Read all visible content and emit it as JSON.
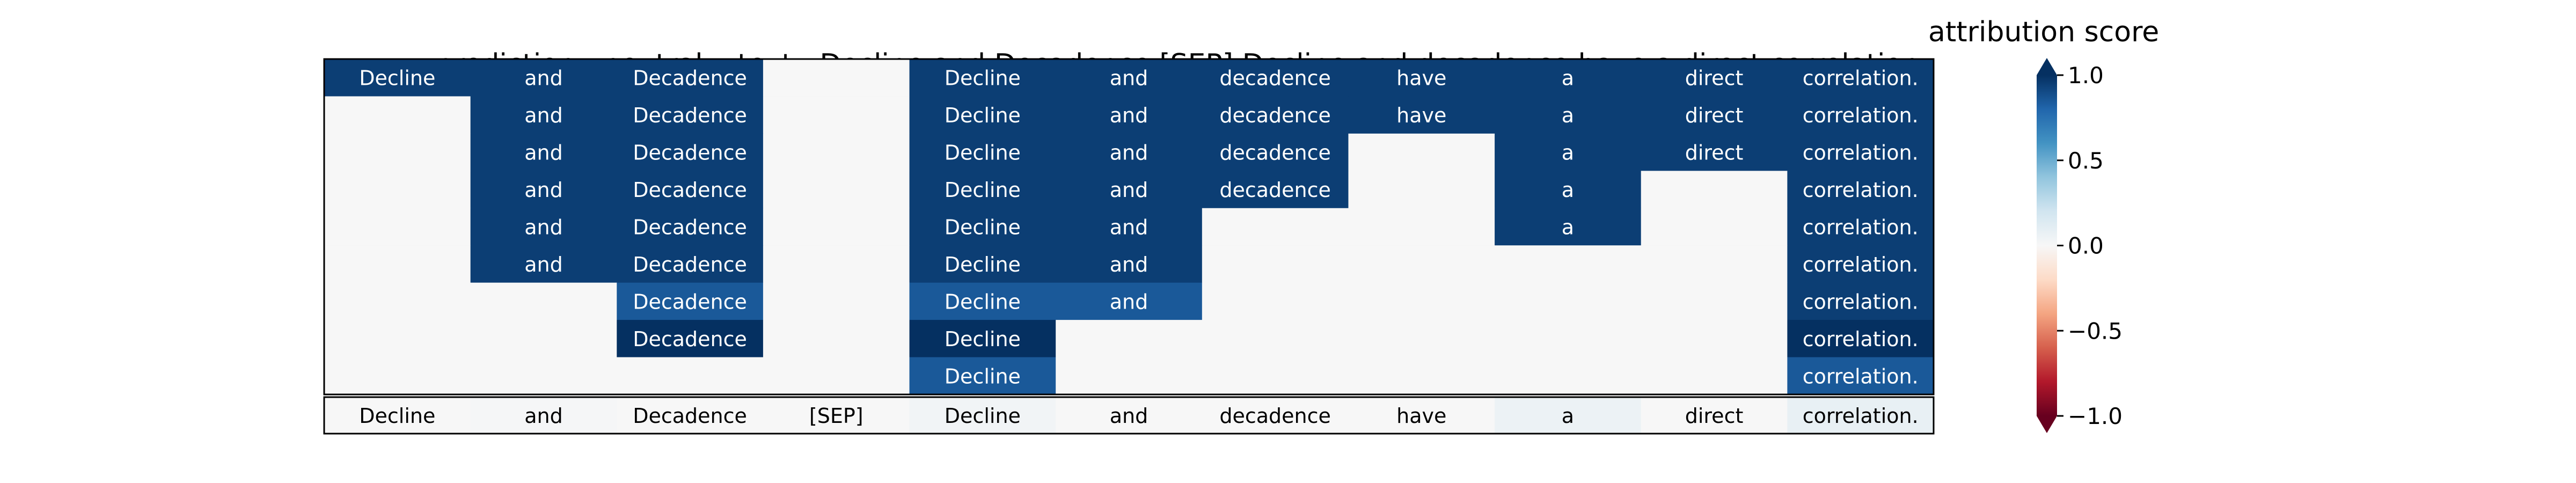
{
  "header": {
    "prediction_label": "prediction:",
    "prediction_value": "neutral",
    "text_label": "text:",
    "text_value": "Decline and Decadence [SEP] Decline and decadence have a direct correlation.",
    "colorbar_title": "attribution score"
  },
  "chart_data": {
    "type": "heatmap",
    "tokens": [
      "Decline",
      "and",
      "Decadence",
      "[SEP]",
      "Decline",
      "and",
      "decadence",
      "have",
      "a",
      "direct",
      "correlation."
    ],
    "rows": [
      [
        0.95,
        0.95,
        0.95,
        0.0,
        0.95,
        0.95,
        0.95,
        0.95,
        0.95,
        0.95,
        0.95
      ],
      [
        0.0,
        0.95,
        0.95,
        0.0,
        0.95,
        0.95,
        0.95,
        0.95,
        0.95,
        0.95,
        0.95
      ],
      [
        0.0,
        0.95,
        0.95,
        0.0,
        0.95,
        0.95,
        0.95,
        0.0,
        0.95,
        0.95,
        0.95
      ],
      [
        0.0,
        0.95,
        0.95,
        0.0,
        0.95,
        0.95,
        0.95,
        0.0,
        0.95,
        0.0,
        0.95
      ],
      [
        0.0,
        0.95,
        0.95,
        0.0,
        0.95,
        0.95,
        0.0,
        0.0,
        0.95,
        0.0,
        0.95
      ],
      [
        0.0,
        0.95,
        0.95,
        0.0,
        0.95,
        0.95,
        0.0,
        0.0,
        0.0,
        0.0,
        0.95
      ],
      [
        0.0,
        0.0,
        0.85,
        0.0,
        0.85,
        0.85,
        0.0,
        0.0,
        0.0,
        0.0,
        0.95
      ],
      [
        0.0,
        0.0,
        1.0,
        0.0,
        1.0,
        0.0,
        0.0,
        0.0,
        0.0,
        0.0,
        1.0
      ],
      [
        0.0,
        0.0,
        0.0,
        0.0,
        0.85,
        0.0,
        0.0,
        0.0,
        0.0,
        0.0,
        0.85
      ]
    ],
    "summary_row": [
      0.0,
      0.01,
      0.0,
      0.0,
      0.03,
      0.0,
      0.0,
      0.0,
      0.06,
      0.0,
      0.08
    ],
    "colorbar": {
      "range": [
        -1.0,
        1.0
      ],
      "ticks": [
        1.0,
        0.5,
        0.0,
        -0.5,
        -1.0
      ],
      "tick_labels": [
        "1.0",
        "0.5",
        "0.0",
        "−0.5",
        "−1.0"
      ],
      "colormap": "RdBu",
      "extend": "both"
    }
  }
}
